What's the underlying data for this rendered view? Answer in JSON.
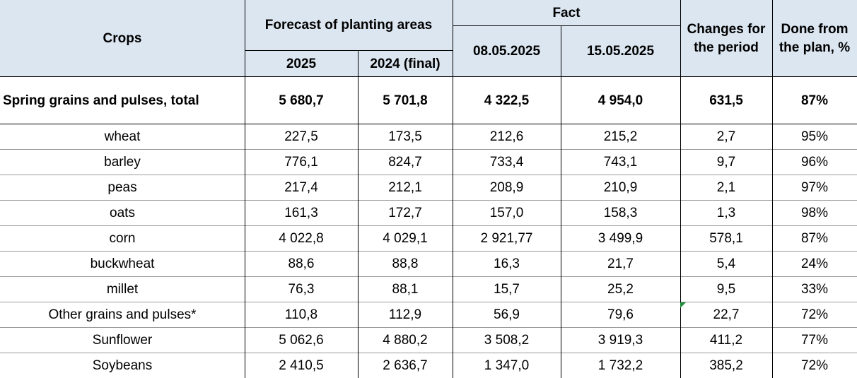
{
  "header": {
    "crops": "Crops",
    "forecast": "Forecast of planting areas",
    "forecast_2025": "2025",
    "forecast_2024": "2024 (final)",
    "fact": "Fact",
    "fact_date1": "08.05.2025",
    "fact_date2": "15.05.2025",
    "changes": "Changes for the period",
    "done": "Done from the plan, %"
  },
  "total": {
    "crop": "Spring grains and pulses, total",
    "f2025": "5 680,7",
    "f2024": "5 701,8",
    "d1": "4 322,5",
    "d2": "4 954,0",
    "change": "631,5",
    "done": "87%"
  },
  "rows": [
    {
      "crop": "wheat",
      "f2025": "227,5",
      "f2024": "173,5",
      "d1": "212,6",
      "d2": "215,2",
      "change": "2,7",
      "done": "95%"
    },
    {
      "crop": "barley",
      "f2025": "776,1",
      "f2024": "824,7",
      "d1": "733,4",
      "d2": "743,1",
      "change": "9,7",
      "done": "96%"
    },
    {
      "crop": "peas",
      "f2025": "217,4",
      "f2024": "212,1",
      "d1": "208,9",
      "d2": "210,9",
      "change": "2,1",
      "done": "97%"
    },
    {
      "crop": "oats",
      "f2025": "161,3",
      "f2024": "172,7",
      "d1": "157,0",
      "d2": "158,3",
      "change": "1,3",
      "done": "98%"
    },
    {
      "crop": "corn",
      "f2025": "4 022,8",
      "f2024": "4 029,1",
      "d1": "2 921,77",
      "d2": "3 499,9",
      "change": "578,1",
      "done": "87%"
    },
    {
      "crop": "buckwheat",
      "f2025": "88,6",
      "f2024": "88,8",
      "d1": "16,3",
      "d2": "21,7",
      "change": "5,4",
      "done": "24%"
    },
    {
      "crop": "millet",
      "f2025": "76,3",
      "f2024": "88,1",
      "d1": "15,7",
      "d2": "25,2",
      "change": "9,5",
      "done": "33%"
    },
    {
      "crop": "Other grains and pulses*",
      "f2025": "110,8",
      "f2024": "112,9",
      "d1": "56,9",
      "d2": "79,6",
      "change": "22,7",
      "done": "72%"
    },
    {
      "crop": "Sunflower",
      "f2025": "5 062,6",
      "f2024": "4 880,2",
      "d1": "3 508,2",
      "d2": "3 919,3",
      "change": "411,2",
      "done": "77%"
    },
    {
      "crop": "Soybeans",
      "f2025": "2 410,5",
      "f2024": "2 636,7",
      "d1": "1 347,0",
      "d2": "1 732,2",
      "change": "385,2",
      "done": "72%"
    }
  ]
}
